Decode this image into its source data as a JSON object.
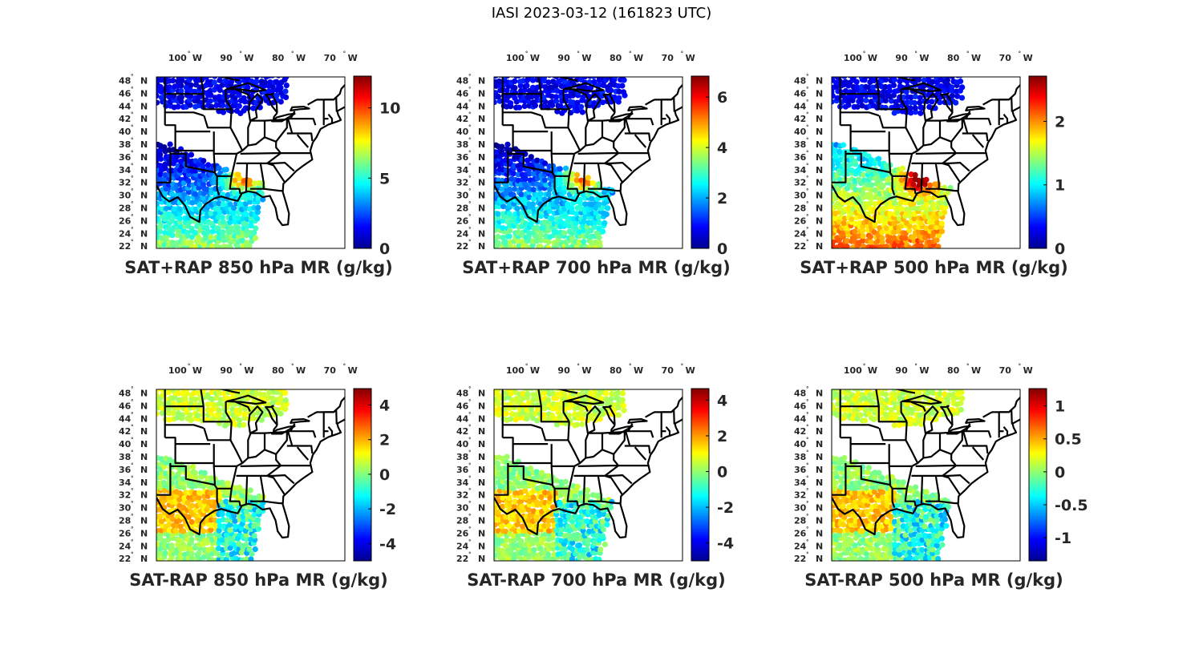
{
  "title": "IASI 2023-03-12 (161823 UTC)",
  "lat_labels": [
    "48",
    "46",
    "44",
    "42",
    "40",
    "38",
    "36",
    "34",
    "32",
    "30",
    "28",
    "26",
    "24",
    "22"
  ],
  "lat_hemisphere": "N",
  "lon_labels": [
    "100",
    "90",
    "80",
    "70"
  ],
  "lon_hemisphere": "W",
  "degree_symbol": "°",
  "colormap": [
    "#00008f",
    "#0000ff",
    "#0080ff",
    "#00ffff",
    "#80ff80",
    "#ffff00",
    "#ff8000",
    "#ff0000",
    "#800000"
  ],
  "colors": {
    "border": "#000000",
    "text": "#262626"
  },
  "panels": [
    {
      "id": "sat-rap-sum-850",
      "label": "SAT+RAP 850 hPa MR (g/kg)",
      "cbar": {
        "min": 0,
        "max": 12.2,
        "ticks": [
          "0",
          "5",
          "10"
        ]
      }
    },
    {
      "id": "sat-rap-sum-700",
      "label": "SAT+RAP 700 hPa MR (g/kg)",
      "cbar": {
        "min": 0,
        "max": 6.8,
        "ticks": [
          "0",
          "2",
          "4",
          "6"
        ]
      }
    },
    {
      "id": "sat-rap-sum-500",
      "label": "SAT+RAP 500 hPa MR (g/kg)",
      "cbar": {
        "min": 0,
        "max": 2.7,
        "ticks": [
          "0",
          "1",
          "2"
        ]
      }
    },
    {
      "id": "sat-rap-diff-850",
      "label": "SAT-RAP 850 hPa MR (g/kg)",
      "cbar": {
        "min": -5,
        "max": 4.9,
        "ticks": [
          "-4",
          "-2",
          "0",
          "2",
          "4"
        ]
      }
    },
    {
      "id": "sat-rap-diff-700",
      "label": "SAT-RAP 700 hPa MR (g/kg)",
      "cbar": {
        "min": -5,
        "max": 4.6,
        "ticks": [
          "-4",
          "-2",
          "0",
          "2",
          "4"
        ]
      }
    },
    {
      "id": "sat-rap-diff-500",
      "label": "SAT-RAP 500 hPa MR (g/kg)",
      "cbar": {
        "min": -1.35,
        "max": 1.25,
        "ticks": [
          "-1",
          "-0.5",
          "0",
          "0.5",
          "1"
        ]
      }
    }
  ]
}
